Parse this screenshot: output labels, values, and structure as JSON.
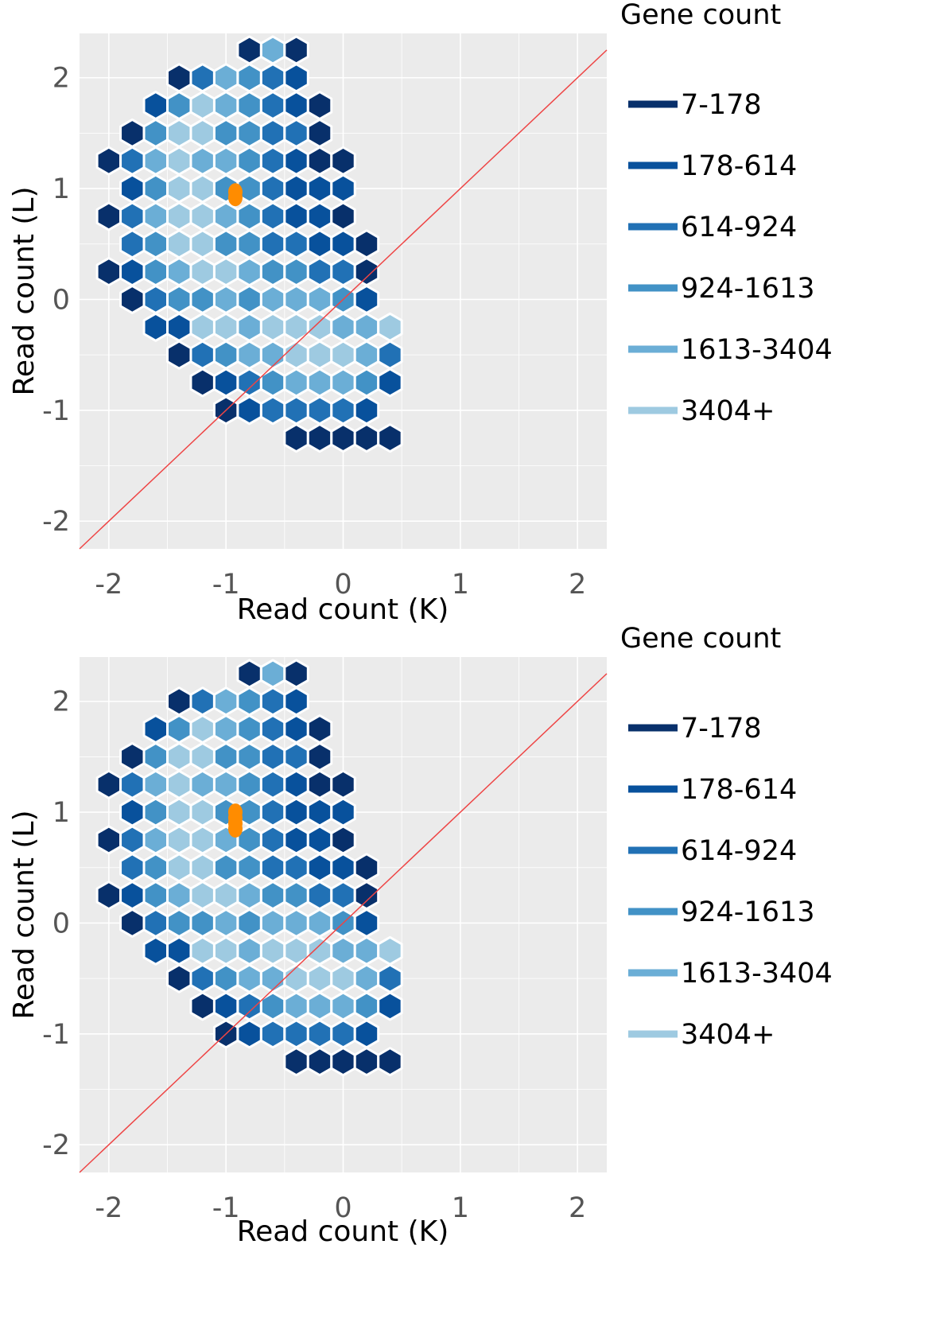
{
  "colors": {
    "panel_background": "#ebebeb",
    "gridline": "#ffffff",
    "hex_stroke": "#ffffff",
    "reference_line": "#ee4444",
    "highlight_points": "#ff8c00"
  },
  "chart_data": [
    {
      "type": "hexbin",
      "title": "",
      "xlabel": "Read count (K)",
      "ylabel": "Read count (L)",
      "xlim": [
        -2.25,
        2.25
      ],
      "ylim": [
        -2.25,
        2.4
      ],
      "x_ticks": [
        "-2",
        "-1",
        "0",
        "1",
        "2"
      ],
      "y_ticks": [
        "-2",
        "-1",
        "0",
        "1",
        "2"
      ],
      "grid": true,
      "reference_line": {
        "slope": 1,
        "intercept": 0
      },
      "legend": {
        "title": "Gene count",
        "placement": "right",
        "entries": [
          {
            "label": "7-178",
            "color": "#08306b"
          },
          {
            "label": "178-614",
            "color": "#08519c"
          },
          {
            "label": "614-924",
            "color": "#2171b5"
          },
          {
            "label": "924-1613",
            "color": "#4292c6"
          },
          {
            "label": "1613-3404",
            "color": "#6baed6"
          },
          {
            "label": "3404+",
            "color": "#9ecae1"
          }
        ]
      },
      "hexbins": [
        {
          "y": 2.25,
          "x_start": -0.8,
          "levels": [
            0,
            4,
            0
          ]
        },
        {
          "y": 2.0,
          "x_start": -1.4,
          "levels": [
            0,
            2,
            4,
            3,
            2,
            1
          ]
        },
        {
          "y": 1.75,
          "x_start": -1.6,
          "levels": [
            1,
            3,
            5,
            4,
            3,
            2,
            1,
            0
          ]
        },
        {
          "y": 1.5,
          "x_start": -1.8,
          "levels": [
            0,
            3,
            5,
            5,
            3,
            3,
            2,
            2,
            0
          ]
        },
        {
          "y": 1.25,
          "x_start": -2.0,
          "levels": [
            0,
            2,
            4,
            5,
            4,
            4,
            3,
            2,
            1,
            0,
            0
          ]
        },
        {
          "y": 1.0,
          "x_start": -1.8,
          "levels": [
            1,
            3,
            5,
            5,
            3,
            3,
            2,
            1,
            1,
            1
          ]
        },
        {
          "y": 0.75,
          "x_start": -2.0,
          "levels": [
            0,
            2,
            4,
            5,
            5,
            4,
            3,
            2,
            1,
            1,
            0
          ]
        },
        {
          "y": 0.5,
          "x_start": -1.8,
          "levels": [
            2,
            3,
            5,
            5,
            3,
            3,
            2,
            2,
            1,
            1,
            0
          ]
        },
        {
          "y": 0.25,
          "x_start": -2.0,
          "levels": [
            0,
            1,
            3,
            4,
            5,
            5,
            4,
            3,
            3,
            2,
            2,
            0
          ]
        },
        {
          "y": 0.0,
          "x_start": -1.8,
          "levels": [
            0,
            2,
            3,
            3,
            4,
            3,
            4,
            4,
            4,
            3,
            1
          ]
        },
        {
          "y": -0.25,
          "x_start": -1.6,
          "levels": [
            1,
            1,
            5,
            5,
            4,
            5,
            5,
            5,
            4,
            4,
            5
          ]
        },
        {
          "y": -0.5,
          "x_start": -1.4,
          "levels": [
            0,
            2,
            3,
            4,
            4,
            5,
            5,
            5,
            4,
            2
          ]
        },
        {
          "y": -0.75,
          "x_start": -1.2,
          "levels": [
            0,
            1,
            2,
            3,
            4,
            4,
            4,
            3,
            1
          ]
        },
        {
          "y": -1.0,
          "x_start": -1.0,
          "levels": [
            0,
            1,
            2,
            2,
            2,
            2,
            1
          ]
        },
        {
          "y": -1.25,
          "x_start": -0.4,
          "levels": [
            0,
            0,
            0,
            0,
            0
          ]
        }
      ],
      "highlight_points": [
        {
          "x": -0.92,
          "y": 0.92
        },
        {
          "x": -0.92,
          "y": 0.97
        }
      ]
    },
    {
      "type": "hexbin",
      "title": "",
      "xlabel": "Read count (K)",
      "ylabel": "Read count (L)",
      "xlim": [
        -2.25,
        2.25
      ],
      "ylim": [
        -2.25,
        2.4
      ],
      "x_ticks": [
        "-2",
        "-1",
        "0",
        "1",
        "2"
      ],
      "y_ticks": [
        "-2",
        "-1",
        "0",
        "1",
        "2"
      ],
      "grid": true,
      "reference_line": {
        "slope": 1,
        "intercept": 0
      },
      "legend": {
        "title": "Gene count",
        "placement": "right",
        "entries": [
          {
            "label": "7-178",
            "color": "#08306b"
          },
          {
            "label": "178-614",
            "color": "#08519c"
          },
          {
            "label": "614-924",
            "color": "#2171b5"
          },
          {
            "label": "924-1613",
            "color": "#4292c6"
          },
          {
            "label": "1613-3404",
            "color": "#6baed6"
          },
          {
            "label": "3404+",
            "color": "#9ecae1"
          }
        ]
      },
      "hexbins": [
        {
          "y": 2.25,
          "x_start": -0.8,
          "levels": [
            0,
            4,
            0
          ]
        },
        {
          "y": 2.0,
          "x_start": -1.4,
          "levels": [
            0,
            2,
            4,
            3,
            2,
            1
          ]
        },
        {
          "y": 1.75,
          "x_start": -1.6,
          "levels": [
            1,
            3,
            5,
            4,
            3,
            2,
            1,
            0
          ]
        },
        {
          "y": 1.5,
          "x_start": -1.8,
          "levels": [
            0,
            3,
            5,
            5,
            3,
            3,
            2,
            2,
            0
          ]
        },
        {
          "y": 1.25,
          "x_start": -2.0,
          "levels": [
            0,
            2,
            4,
            5,
            4,
            4,
            3,
            2,
            1,
            0,
            0
          ]
        },
        {
          "y": 1.0,
          "x_start": -1.8,
          "levels": [
            1,
            3,
            5,
            5,
            3,
            3,
            2,
            1,
            1,
            1
          ]
        },
        {
          "y": 0.75,
          "x_start": -2.0,
          "levels": [
            0,
            2,
            4,
            5,
            5,
            4,
            3,
            2,
            1,
            1,
            0
          ]
        },
        {
          "y": 0.5,
          "x_start": -1.8,
          "levels": [
            2,
            3,
            5,
            5,
            3,
            3,
            2,
            2,
            1,
            1,
            0
          ]
        },
        {
          "y": 0.25,
          "x_start": -2.0,
          "levels": [
            0,
            1,
            3,
            4,
            5,
            5,
            4,
            3,
            3,
            2,
            2,
            0
          ]
        },
        {
          "y": 0.0,
          "x_start": -1.8,
          "levels": [
            0,
            2,
            3,
            3,
            4,
            3,
            4,
            4,
            4,
            3,
            1
          ]
        },
        {
          "y": -0.25,
          "x_start": -1.6,
          "levels": [
            1,
            1,
            5,
            5,
            4,
            5,
            5,
            5,
            4,
            4,
            5
          ]
        },
        {
          "y": -0.5,
          "x_start": -1.4,
          "levels": [
            0,
            2,
            3,
            4,
            4,
            5,
            5,
            5,
            4,
            2
          ]
        },
        {
          "y": -0.75,
          "x_start": -1.2,
          "levels": [
            0,
            1,
            2,
            3,
            4,
            4,
            4,
            3,
            1
          ]
        },
        {
          "y": -1.0,
          "x_start": -1.0,
          "levels": [
            0,
            1,
            2,
            2,
            2,
            2,
            1
          ]
        },
        {
          "y": -1.25,
          "x_start": -0.4,
          "levels": [
            0,
            0,
            0,
            0,
            0
          ]
        }
      ],
      "highlight_points": [
        {
          "x": -0.92,
          "y": 0.85
        },
        {
          "x": -0.92,
          "y": 0.9
        },
        {
          "x": -0.92,
          "y": 0.95
        },
        {
          "x": -0.92,
          "y": 1.0
        }
      ]
    }
  ]
}
